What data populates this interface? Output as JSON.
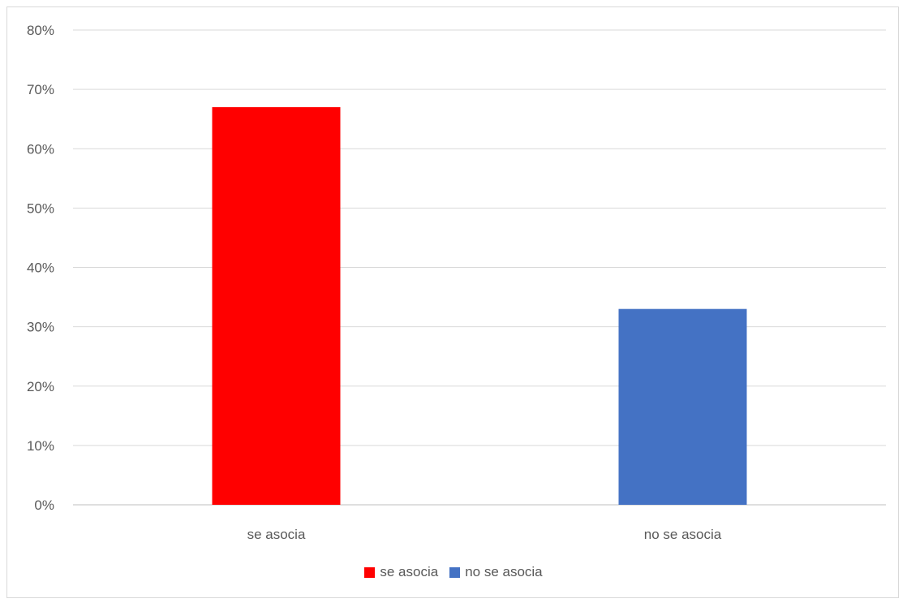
{
  "chart_data": {
    "type": "bar",
    "categories": [
      "se asocia",
      "no se asocia"
    ],
    "values": [
      67,
      33
    ],
    "colors": [
      "#ff0000",
      "#4472c4"
    ],
    "value_format": "percent",
    "ylim": [
      0,
      80
    ],
    "ytick_step": 10,
    "grid": true,
    "legend": {
      "position": "bottom",
      "items": [
        {
          "label": "se asocia",
          "color": "#ff0000"
        },
        {
          "label": "no se asocia",
          "color": "#4472c4"
        }
      ]
    }
  }
}
